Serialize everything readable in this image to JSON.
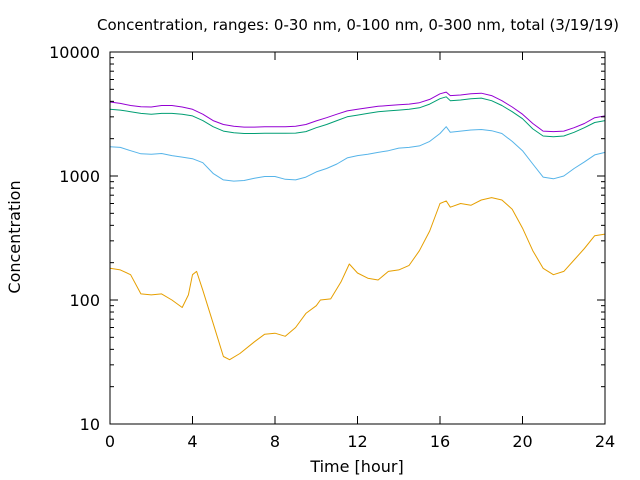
{
  "chart_data": {
    "type": "line",
    "title": "Concentration, ranges: 0-30 nm, 0-100 nm, 0-300 nm, total (3/19/19)",
    "xlabel": "Time [hour]",
    "ylabel": "Concentration",
    "xlim": [
      0,
      24
    ],
    "ylim": [
      10,
      10000
    ],
    "yscale": "log",
    "grid": false,
    "legend": "none",
    "x_ticks": [
      "0",
      "4",
      "8",
      "12",
      "16",
      "20",
      "24"
    ],
    "y_ticks": [
      "10",
      "100",
      "1000",
      "10000"
    ],
    "series": [
      {
        "color": "#e69f00",
        "points": [
          [
            0,
            180
          ],
          [
            0.5,
            175
          ],
          [
            1,
            160
          ],
          [
            1.5,
            112
          ],
          [
            2,
            110
          ],
          [
            2.5,
            112
          ],
          [
            3,
            100
          ],
          [
            3.5,
            87
          ],
          [
            3.8,
            110
          ],
          [
            4,
            160
          ],
          [
            4.2,
            170
          ],
          [
            4.5,
            120
          ],
          [
            5,
            65
          ],
          [
            5.5,
            35
          ],
          [
            5.8,
            33
          ],
          [
            6.3,
            37
          ],
          [
            7,
            46
          ],
          [
            7.5,
            53
          ],
          [
            8,
            54
          ],
          [
            8.5,
            51
          ],
          [
            9,
            60
          ],
          [
            9.5,
            78
          ],
          [
            10,
            90
          ],
          [
            10.2,
            100
          ],
          [
            10.7,
            102
          ],
          [
            11.2,
            140
          ],
          [
            11.6,
            195
          ],
          [
            12,
            165
          ],
          [
            12.5,
            150
          ],
          [
            13,
            145
          ],
          [
            13.5,
            170
          ],
          [
            14,
            175
          ],
          [
            14.5,
            190
          ],
          [
            15,
            250
          ],
          [
            15.5,
            360
          ],
          [
            16,
            600
          ],
          [
            16.3,
            630
          ],
          [
            16.5,
            560
          ],
          [
            17,
            600
          ],
          [
            17.5,
            580
          ],
          [
            18,
            640
          ],
          [
            18.5,
            670
          ],
          [
            19,
            640
          ],
          [
            19.5,
            540
          ],
          [
            20,
            380
          ],
          [
            20.5,
            250
          ],
          [
            21,
            180
          ],
          [
            21.5,
            160
          ],
          [
            22,
            170
          ],
          [
            22.5,
            210
          ],
          [
            23,
            260
          ],
          [
            23.5,
            330
          ],
          [
            24,
            340
          ]
        ]
      },
      {
        "color": "#56b4e9",
        "points": [
          [
            0,
            1720
          ],
          [
            0.5,
            1700
          ],
          [
            1,
            1600
          ],
          [
            1.5,
            1510
          ],
          [
            2,
            1500
          ],
          [
            2.5,
            1520
          ],
          [
            3,
            1460
          ],
          [
            3.5,
            1420
          ],
          [
            4,
            1380
          ],
          [
            4.5,
            1280
          ],
          [
            5,
            1050
          ],
          [
            5.5,
            930
          ],
          [
            6,
            910
          ],
          [
            6.5,
            920
          ],
          [
            7,
            960
          ],
          [
            7.5,
            990
          ],
          [
            8,
            990
          ],
          [
            8.5,
            940
          ],
          [
            9,
            930
          ],
          [
            9.5,
            980
          ],
          [
            10,
            1080
          ],
          [
            10.5,
            1150
          ],
          [
            11,
            1250
          ],
          [
            11.5,
            1400
          ],
          [
            12,
            1460
          ],
          [
            12.5,
            1500
          ],
          [
            13,
            1550
          ],
          [
            13.5,
            1600
          ],
          [
            14,
            1680
          ],
          [
            14.5,
            1700
          ],
          [
            15,
            1750
          ],
          [
            15.5,
            1900
          ],
          [
            16,
            2200
          ],
          [
            16.3,
            2500
          ],
          [
            16.5,
            2250
          ],
          [
            17,
            2300
          ],
          [
            17.5,
            2350
          ],
          [
            18,
            2370
          ],
          [
            18.5,
            2320
          ],
          [
            19,
            2200
          ],
          [
            19.5,
            1900
          ],
          [
            20,
            1600
          ],
          [
            20.5,
            1250
          ],
          [
            21,
            980
          ],
          [
            21.5,
            950
          ],
          [
            22,
            1000
          ],
          [
            22.5,
            1150
          ],
          [
            23,
            1300
          ],
          [
            23.5,
            1480
          ],
          [
            24,
            1550
          ]
        ]
      },
      {
        "color": "#009e73",
        "points": [
          [
            0,
            3450
          ],
          [
            0.5,
            3400
          ],
          [
            1,
            3300
          ],
          [
            1.5,
            3200
          ],
          [
            2,
            3150
          ],
          [
            2.5,
            3200
          ],
          [
            3,
            3200
          ],
          [
            3.5,
            3150
          ],
          [
            4,
            3050
          ],
          [
            4.5,
            2800
          ],
          [
            5,
            2500
          ],
          [
            5.5,
            2300
          ],
          [
            6,
            2230
          ],
          [
            6.5,
            2200
          ],
          [
            7,
            2200
          ],
          [
            7.5,
            2210
          ],
          [
            8,
            2210
          ],
          [
            8.5,
            2210
          ],
          [
            9,
            2220
          ],
          [
            9.5,
            2280
          ],
          [
            10,
            2450
          ],
          [
            10.5,
            2600
          ],
          [
            11,
            2800
          ],
          [
            11.5,
            3000
          ],
          [
            12,
            3100
          ],
          [
            12.5,
            3200
          ],
          [
            13,
            3300
          ],
          [
            13.5,
            3350
          ],
          [
            14,
            3400
          ],
          [
            14.5,
            3450
          ],
          [
            15,
            3550
          ],
          [
            15.5,
            3800
          ],
          [
            16,
            4200
          ],
          [
            16.3,
            4350
          ],
          [
            16.5,
            4050
          ],
          [
            17,
            4100
          ],
          [
            17.5,
            4200
          ],
          [
            18,
            4250
          ],
          [
            18.5,
            4050
          ],
          [
            19,
            3700
          ],
          [
            19.5,
            3300
          ],
          [
            20,
            2900
          ],
          [
            20.5,
            2400
          ],
          [
            21,
            2100
          ],
          [
            21.5,
            2070
          ],
          [
            22,
            2100
          ],
          [
            22.5,
            2250
          ],
          [
            23,
            2450
          ],
          [
            23.5,
            2700
          ],
          [
            24,
            2800
          ]
        ]
      },
      {
        "color": "#9400d3",
        "points": [
          [
            0,
            3950
          ],
          [
            0.5,
            3850
          ],
          [
            1,
            3700
          ],
          [
            1.5,
            3620
          ],
          [
            2,
            3600
          ],
          [
            2.5,
            3700
          ],
          [
            3,
            3700
          ],
          [
            3.5,
            3600
          ],
          [
            4,
            3450
          ],
          [
            4.5,
            3150
          ],
          [
            5,
            2800
          ],
          [
            5.5,
            2600
          ],
          [
            6,
            2520
          ],
          [
            6.5,
            2480
          ],
          [
            7,
            2480
          ],
          [
            7.5,
            2500
          ],
          [
            8,
            2500
          ],
          [
            8.5,
            2500
          ],
          [
            9,
            2520
          ],
          [
            9.5,
            2600
          ],
          [
            10,
            2780
          ],
          [
            10.5,
            2950
          ],
          [
            11,
            3150
          ],
          [
            11.5,
            3350
          ],
          [
            12,
            3450
          ],
          [
            12.5,
            3550
          ],
          [
            13,
            3650
          ],
          [
            13.5,
            3700
          ],
          [
            14,
            3750
          ],
          [
            14.5,
            3800
          ],
          [
            15,
            3900
          ],
          [
            15.5,
            4150
          ],
          [
            16,
            4600
          ],
          [
            16.3,
            4750
          ],
          [
            16.5,
            4450
          ],
          [
            17,
            4500
          ],
          [
            17.5,
            4600
          ],
          [
            18,
            4650
          ],
          [
            18.5,
            4450
          ],
          [
            19,
            4050
          ],
          [
            19.5,
            3600
          ],
          [
            20,
            3150
          ],
          [
            20.5,
            2650
          ],
          [
            21,
            2300
          ],
          [
            21.5,
            2280
          ],
          [
            22,
            2300
          ],
          [
            22.5,
            2450
          ],
          [
            23,
            2650
          ],
          [
            23.5,
            2950
          ],
          [
            24,
            3050
          ]
        ]
      }
    ]
  }
}
